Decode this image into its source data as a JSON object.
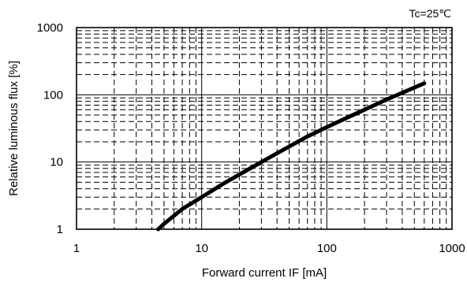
{
  "chart_data": {
    "type": "line",
    "title": "",
    "annotation": "Tc=25℃",
    "xlabel": "Forward current  IF [mA]",
    "ylabel": "Relative luminous flux  [%]",
    "x_scale": "log",
    "y_scale": "log",
    "xlim": [
      1,
      1000
    ],
    "ylim": [
      1,
      1000
    ],
    "x_ticks": [
      1,
      10,
      100,
      1000
    ],
    "y_ticks": [
      1,
      10,
      100,
      1000
    ],
    "x_tick_labels": [
      "1",
      "10",
      "100",
      "1000"
    ],
    "y_tick_labels": [
      "1",
      "10",
      "100",
      "1000"
    ],
    "grid": true,
    "series": [
      {
        "x": [
          4.5,
          5,
          7,
          10,
          15,
          20,
          30,
          50,
          70,
          100,
          150,
          200,
          300,
          400,
          500,
          600
        ],
        "y": [
          1,
          1.2,
          2,
          3,
          4.8,
          6.5,
          10,
          17,
          24,
          33,
          47,
          60,
          85,
          107,
          128,
          148
        ]
      }
    ]
  }
}
